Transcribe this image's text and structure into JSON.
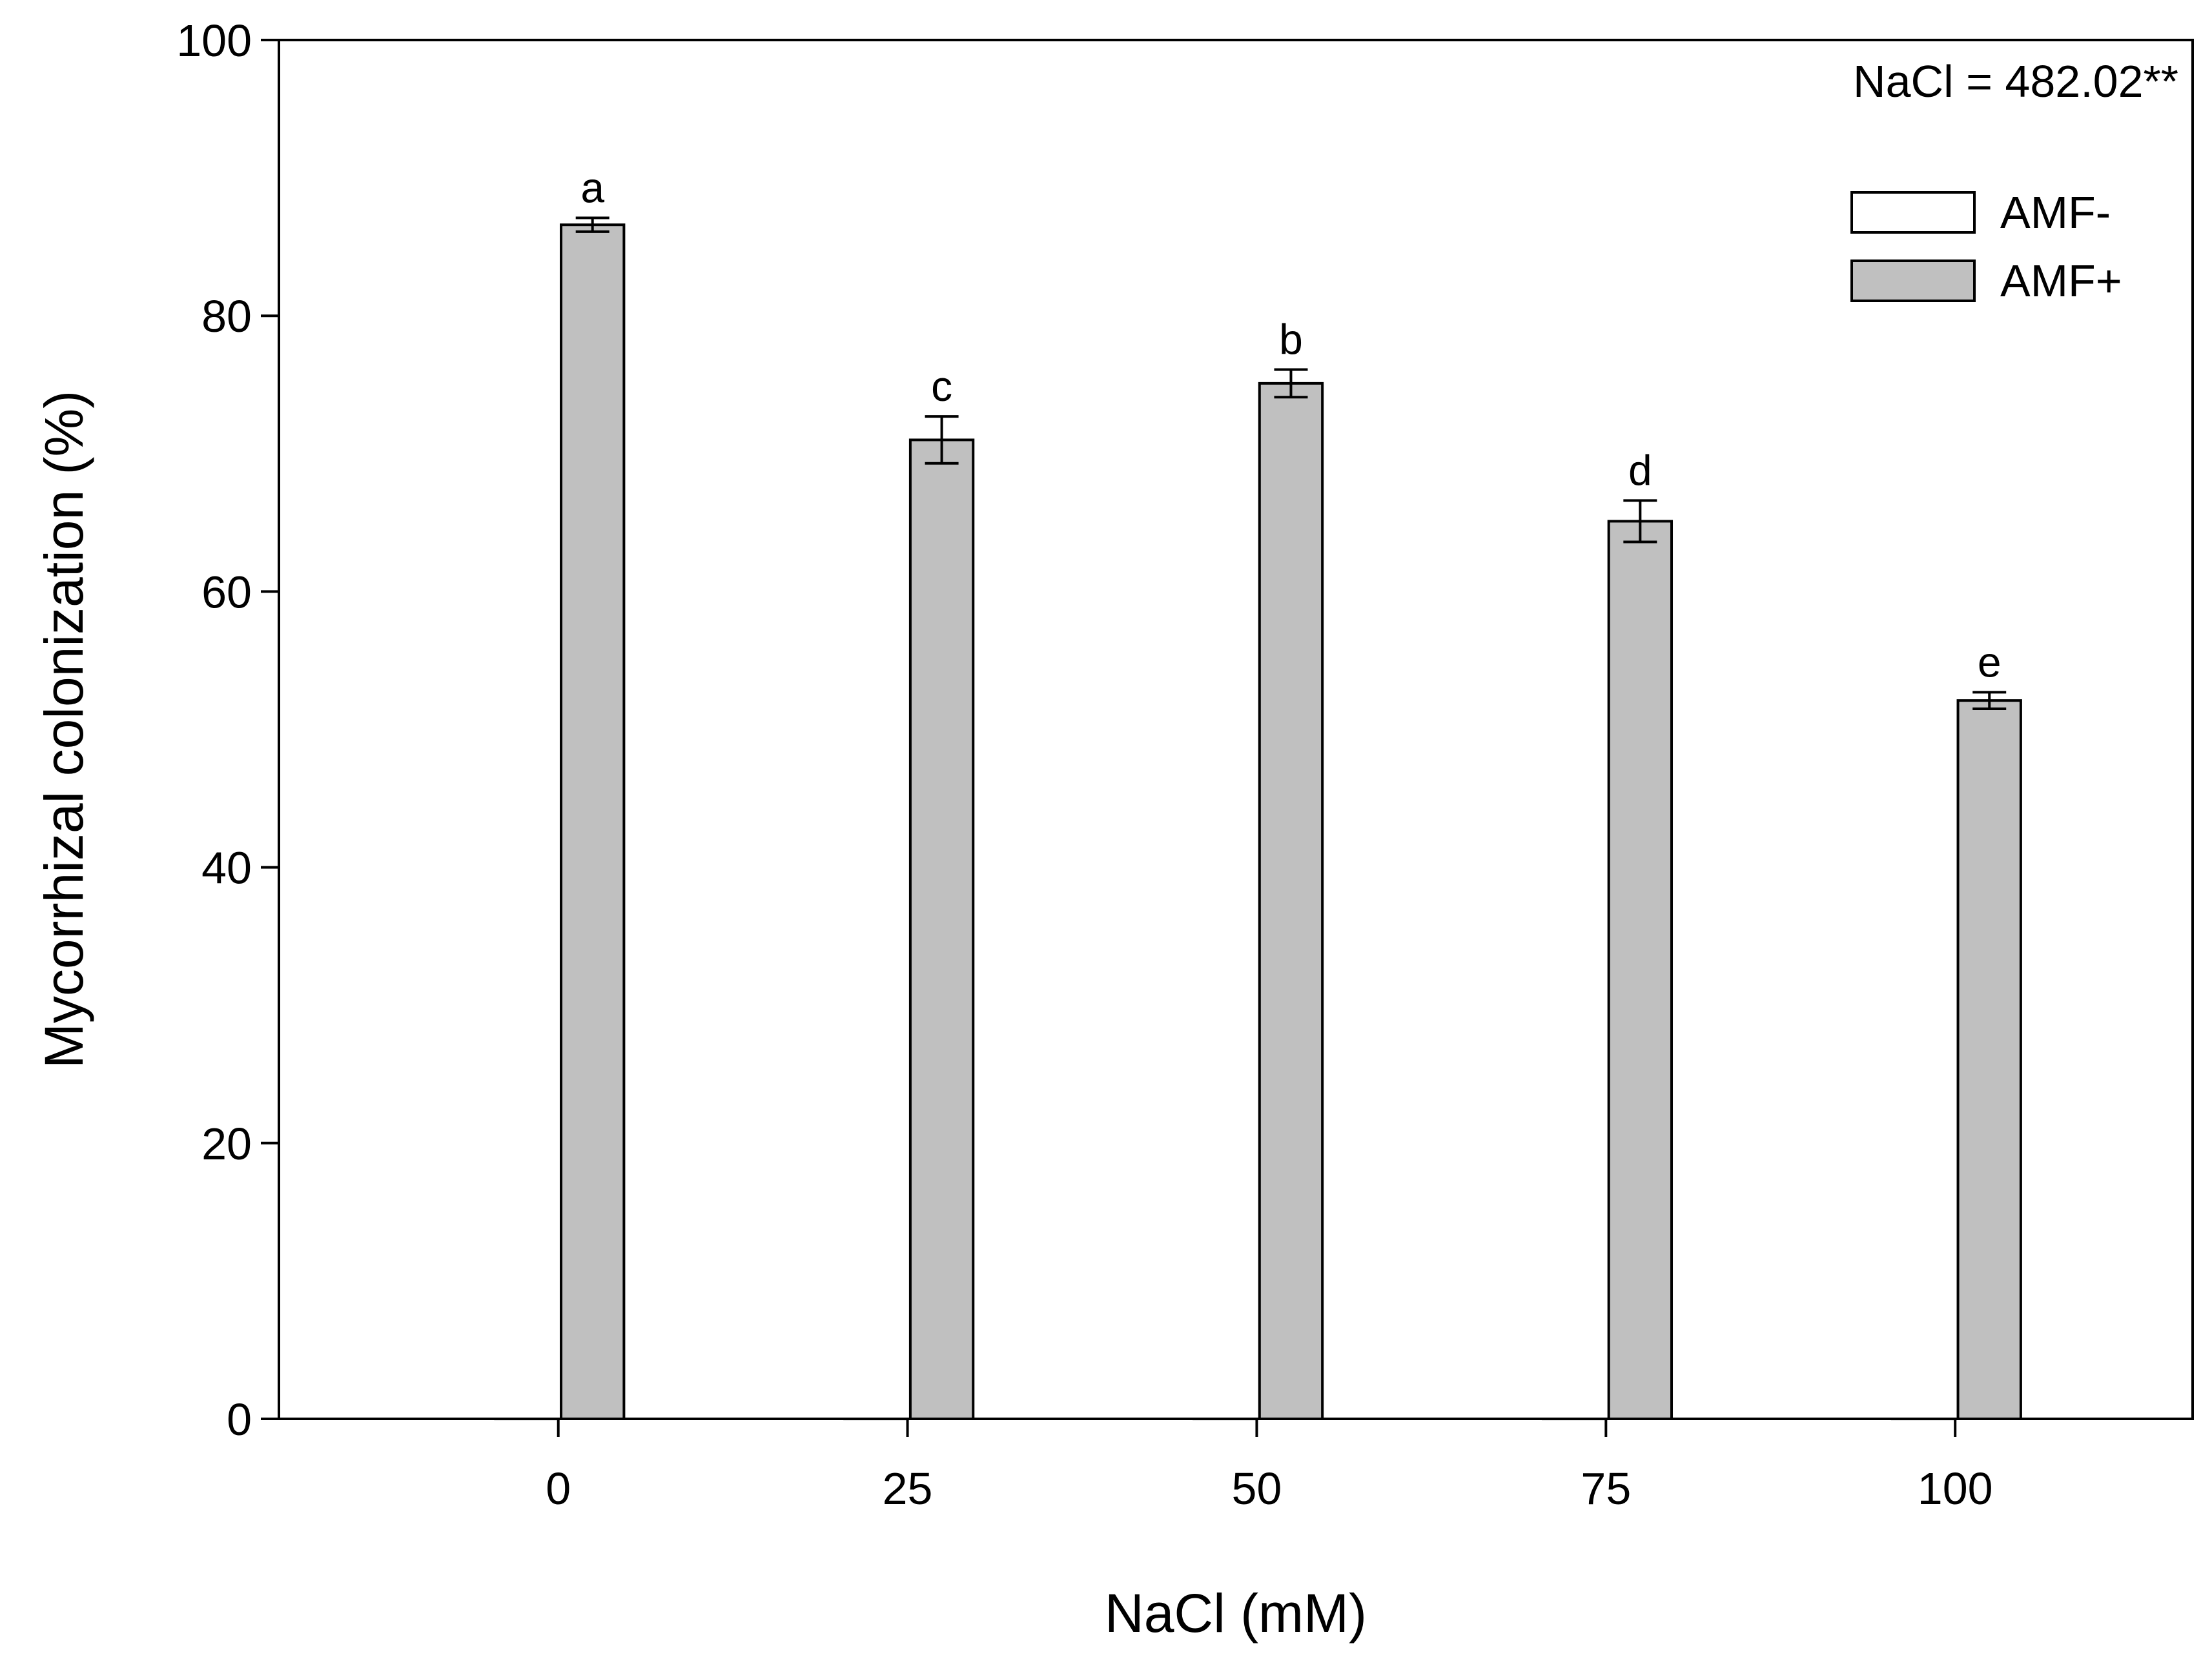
{
  "chart_data": {
    "type": "bar",
    "title": "",
    "xlabel": "NaCl (mM)",
    "ylabel": "Mycorrhizal colonization (%)",
    "categories": [
      "0",
      "25",
      "50",
      "75",
      "100"
    ],
    "xlim": [
      -20,
      117
    ],
    "ylim": [
      0,
      100
    ],
    "yticks": [
      "0",
      "20",
      "40",
      "60",
      "80",
      "100"
    ],
    "grid": false,
    "legend_position": "top-right",
    "annotation": "NaCl = 482.02**",
    "series": [
      {
        "name": "AMF-",
        "color": "#ffffff",
        "values": [
          0,
          0,
          0,
          0,
          0
        ],
        "errors": [
          0,
          0,
          0,
          0,
          0
        ]
      },
      {
        "name": "AMF+",
        "color": "#c0c0c0",
        "values": [
          86.6,
          71.0,
          75.1,
          65.1,
          52.1
        ],
        "errors": [
          0.5,
          1.7,
          1.0,
          1.5,
          0.6
        ],
        "letters": [
          "a",
          "c",
          "b",
          "d",
          "e"
        ]
      }
    ]
  }
}
